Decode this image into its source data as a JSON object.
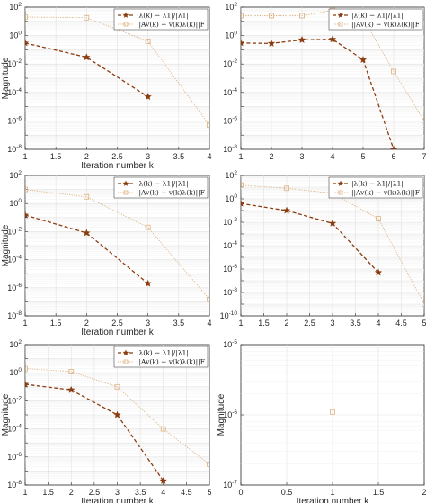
{
  "colors": {
    "series1": "#8b3c0f",
    "series2": "#ddb07e",
    "axis": "#262626",
    "grid": "#e1e1e1"
  },
  "chart_data": [
    {
      "type": "line",
      "xlabel": "Iteration number k",
      "ylabel": "Magnitude",
      "xlim": [
        1,
        4
      ],
      "ylim_log10": [
        -8,
        2
      ],
      "yscale": "log",
      "grid": true,
      "legend": "top-right",
      "xticks": [
        "1",
        "1.5",
        "2",
        "2.5",
        "3",
        "3.5",
        "4"
      ],
      "series": [
        {
          "name": "|λ(k) − λ1|/|λ1|",
          "marker": "star",
          "x": [
            1,
            2,
            3
          ],
          "y": [
            0.3,
            0.03,
            5e-05
          ]
        },
        {
          "name": "||Av(k) − v(k)λ(k)||F",
          "marker": "square",
          "x": [
            1,
            2,
            3,
            4
          ],
          "y": [
            20,
            18,
            0.4,
            5e-07
          ]
        }
      ]
    },
    {
      "type": "line",
      "xlabel": "",
      "ylabel": "",
      "xlim": [
        1,
        7
      ],
      "ylim_log10": [
        -8,
        2
      ],
      "yscale": "log",
      "grid": true,
      "legend": "top-right",
      "xticks": [
        "1",
        "2",
        "3",
        "4",
        "5",
        "6",
        "7"
      ],
      "series": [
        {
          "name": "|λ(k) − λ1|/|λ1|",
          "marker": "star",
          "x": [
            1,
            2,
            3,
            4,
            5,
            6
          ],
          "y": [
            0.3,
            0.28,
            0.5,
            0.55,
            0.02,
            1e-08
          ]
        },
        {
          "name": "||Av(k) − v(k)λ(k)||F",
          "marker": "square",
          "x": [
            1,
            2,
            3,
            4,
            5,
            6,
            7
          ],
          "y": [
            25,
            25,
            25,
            60,
            18,
            0.003,
            1e-06
          ]
        }
      ]
    },
    {
      "type": "line",
      "xlabel": "Iteration number k",
      "ylabel": "Magnitude",
      "xlim": [
        1,
        4
      ],
      "ylim_log10": [
        -8,
        2
      ],
      "yscale": "log",
      "grid": true,
      "legend": "top-right",
      "xticks": [
        "1",
        "1.5",
        "2",
        "2.5",
        "3",
        "3.5",
        "4"
      ],
      "series": [
        {
          "name": "|λ(k) − λ1|/|λ1|",
          "marker": "star",
          "x": [
            1,
            2,
            3
          ],
          "y": [
            0.15,
            0.008,
            2e-06
          ]
        },
        {
          "name": "||Av(k) − v(k)λ(k)||F",
          "marker": "square",
          "x": [
            1,
            2,
            3,
            4
          ],
          "y": [
            10,
            3,
            0.02,
            1.5e-07
          ]
        }
      ]
    },
    {
      "type": "line",
      "xlabel": "",
      "ylabel": "",
      "xlim": [
        1,
        5
      ],
      "ylim_log10": [
        -10,
        2
      ],
      "yscale": "log",
      "grid": true,
      "legend": "top-right",
      "xticks": [
        "1",
        "1.5",
        "2",
        "2.5",
        "3",
        "3.5",
        "4",
        "4.5",
        "5"
      ],
      "series": [
        {
          "name": "|λ(k) − λ1|/|λ1|",
          "marker": "star",
          "x": [
            1,
            2,
            3,
            4
          ],
          "y": [
            0.4,
            0.1,
            0.008,
            5e-07
          ]
        },
        {
          "name": "||Av(k) − v(k)λ(k)||F",
          "marker": "square",
          "x": [
            1,
            2,
            3,
            4,
            5
          ],
          "y": [
            15,
            8,
            3,
            0.02,
            1e-09
          ]
        }
      ]
    },
    {
      "type": "line",
      "xlabel": "Iteration number k",
      "ylabel": "Magnitude",
      "xlim": [
        1,
        5
      ],
      "ylim_log10": [
        -8,
        2
      ],
      "yscale": "log",
      "grid": true,
      "legend": "top-right",
      "xticks": [
        "1",
        "1.5",
        "2",
        "2.5",
        "3",
        "3.5",
        "4",
        "4.5",
        "5"
      ],
      "series": [
        {
          "name": "|λ(k) − λ1|/|λ1|",
          "marker": "star",
          "x": [
            1,
            2,
            3,
            4
          ],
          "y": [
            0.15,
            0.06,
            0.001,
            2e-08
          ]
        },
        {
          "name": "||Av(k) − v(k)λ(k)||F",
          "marker": "square",
          "x": [
            1,
            2,
            3,
            4,
            5
          ],
          "y": [
            2,
            1.2,
            0.1,
            0.0001,
            3e-07
          ]
        }
      ]
    },
    {
      "type": "scatter",
      "xlabel": "Iteration number k",
      "ylabel": "Magnitude",
      "xlim": [
        0,
        2
      ],
      "ylim_log10": [
        -7,
        -5
      ],
      "yscale": "log",
      "grid": true,
      "legend": "none",
      "xticks": [
        "0",
        "0.5",
        "1",
        "1.5",
        "2"
      ],
      "series": [
        {
          "marker": "square",
          "x": [
            1
          ],
          "y": [
            1.1e-06
          ]
        }
      ]
    }
  ]
}
